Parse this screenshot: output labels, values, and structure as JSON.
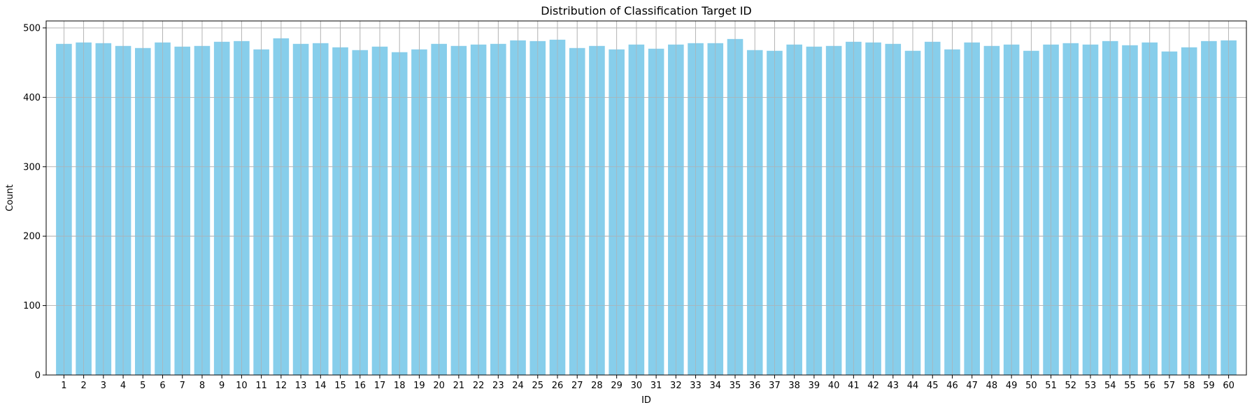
{
  "chart_data": {
    "type": "bar",
    "title": "Distribution of Classification Target ID",
    "xlabel": "ID",
    "ylabel": "Count",
    "ylim": [
      0,
      510
    ],
    "yticks": [
      "0",
      "100",
      "200",
      "300",
      "400",
      "500"
    ],
    "grid": true,
    "bar_color": "#87ceeb",
    "grid_color": "#b0b0b0",
    "categories": [
      "1",
      "2",
      "3",
      "4",
      "5",
      "6",
      "7",
      "8",
      "9",
      "10",
      "11",
      "12",
      "13",
      "14",
      "15",
      "16",
      "17",
      "18",
      "19",
      "20",
      "21",
      "22",
      "23",
      "24",
      "25",
      "26",
      "27",
      "28",
      "29",
      "30",
      "31",
      "32",
      "33",
      "34",
      "35",
      "36",
      "37",
      "38",
      "39",
      "40",
      "41",
      "42",
      "43",
      "44",
      "45",
      "46",
      "47",
      "48",
      "49",
      "50",
      "51",
      "52",
      "53",
      "54",
      "55",
      "56",
      "57",
      "58",
      "59",
      "60"
    ],
    "values": [
      477,
      479,
      478,
      474,
      471,
      479,
      473,
      474,
      480,
      481,
      469,
      485,
      477,
      478,
      472,
      468,
      473,
      465,
      469,
      477,
      474,
      476,
      477,
      482,
      481,
      483,
      471,
      474,
      469,
      476,
      470,
      476,
      478,
      478,
      484,
      468,
      467,
      476,
      473,
      474,
      480,
      479,
      477,
      467,
      480,
      469,
      479,
      474,
      476,
      467,
      476,
      478,
      476,
      481,
      475,
      479,
      466,
      472,
      481,
      482
    ]
  }
}
